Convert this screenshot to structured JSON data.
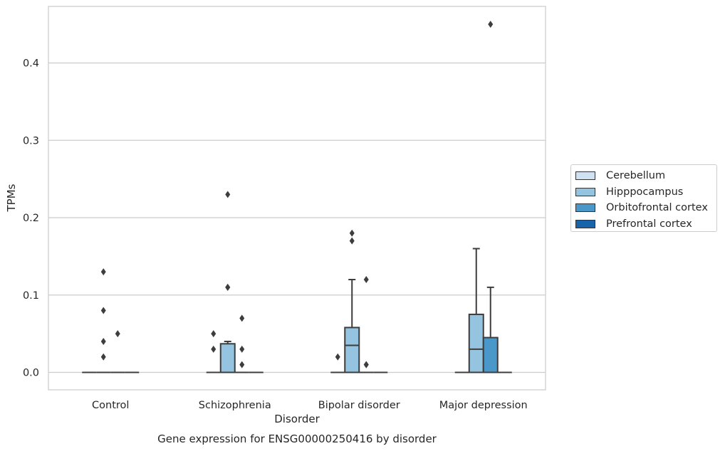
{
  "chart_data": {
    "type": "box",
    "title": "Gene expression for ENSG00000250416 by disorder",
    "xlabel": "Disorder",
    "ylabel": "TPMs",
    "ylim": [
      -0.022,
      0.475
    ],
    "yticks": [
      "0.0",
      "0.1",
      "0.2",
      "0.3",
      "0.4"
    ],
    "ytick_values": [
      0.0,
      0.1,
      0.2,
      0.3,
      0.4
    ],
    "grid": "horizontal",
    "legend_position": "right",
    "categories": [
      "Control",
      "Schizophrenia",
      "Bipolar disorder",
      "Major depression"
    ],
    "series": [
      {
        "name": "Cerebellum",
        "color": "#d0e1f2",
        "boxes": [
          {
            "q1": 0,
            "median": 0,
            "q3": 0,
            "whislo": 0,
            "whishi": 0,
            "fliers": []
          },
          {
            "q1": 0,
            "median": 0,
            "q3": 0,
            "whislo": 0,
            "whishi": 0,
            "fliers": [
              0.03,
              0.05
            ]
          },
          {
            "q1": 0,
            "median": 0,
            "q3": 0,
            "whislo": 0,
            "whishi": 0,
            "fliers": [
              0.02
            ]
          },
          {
            "q1": 0,
            "median": 0,
            "q3": 0,
            "whislo": 0,
            "whishi": 0,
            "fliers": []
          }
        ]
      },
      {
        "name": "Hipppocampus",
        "color": "#94c4df",
        "boxes": [
          {
            "q1": 0,
            "median": 0,
            "q3": 0,
            "whislo": 0,
            "whishi": 0,
            "fliers": [
              0.02,
              0.04,
              0.08,
              0.13
            ]
          },
          {
            "q1": 0,
            "median": 0,
            "q3": 0.037,
            "whislo": 0,
            "whishi": 0.04,
            "fliers": [
              0.11,
              0.11,
              0.23
            ]
          },
          {
            "q1": 0,
            "median": 0.035,
            "q3": 0.058,
            "whislo": 0,
            "whishi": 0.12,
            "fliers": [
              0.17,
              0.18
            ]
          },
          {
            "q1": 0,
            "median": 0.03,
            "q3": 0.075,
            "whislo": 0,
            "whishi": 0.16,
            "fliers": []
          }
        ]
      },
      {
        "name": "Orbitofrontal cortex",
        "color": "#4a98c9",
        "boxes": [
          {
            "q1": 0,
            "median": 0,
            "q3": 0,
            "whislo": 0,
            "whishi": 0,
            "fliers": [
              0.05
            ]
          },
          {
            "q1": 0,
            "median": 0,
            "q3": 0,
            "whislo": 0,
            "whishi": 0,
            "fliers": [
              0.01,
              0.03,
              0.07
            ]
          },
          {
            "q1": 0,
            "median": 0,
            "q3": 0,
            "whislo": 0,
            "whishi": 0,
            "fliers": [
              0.01,
              0.01,
              0.12
            ]
          },
          {
            "q1": 0,
            "median": 0,
            "q3": 0.045,
            "whislo": 0,
            "whishi": 0.11,
            "fliers": [
              0.45
            ]
          }
        ]
      },
      {
        "name": "Prefrontal cortex",
        "color": "#1764ab",
        "boxes": [
          {
            "q1": 0,
            "median": 0,
            "q3": 0,
            "whislo": 0,
            "whishi": 0,
            "fliers": []
          },
          {
            "q1": 0,
            "median": 0,
            "q3": 0,
            "whislo": 0,
            "whishi": 0,
            "fliers": []
          },
          {
            "q1": 0,
            "median": 0,
            "q3": 0,
            "whislo": 0,
            "whishi": 0,
            "fliers": []
          },
          {
            "q1": 0,
            "median": 0,
            "q3": 0,
            "whislo": 0,
            "whishi": 0,
            "fliers": []
          }
        ]
      }
    ]
  }
}
